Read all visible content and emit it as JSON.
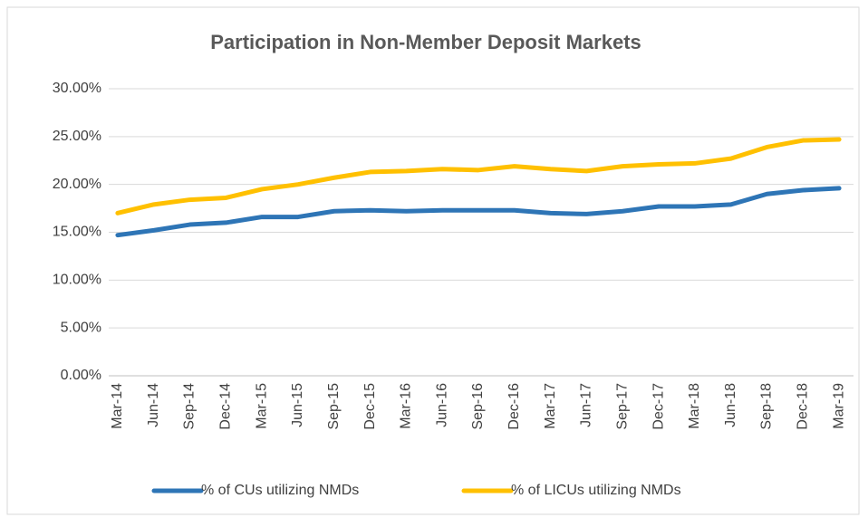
{
  "chart_data": {
    "type": "line",
    "title": "Participation in Non-Member Deposit Markets",
    "categories": [
      "Mar-14",
      "Jun-14",
      "Sep-14",
      "Dec-14",
      "Mar-15",
      "Jun-15",
      "Sep-15",
      "Dec-15",
      "Mar-16",
      "Jun-16",
      "Sep-16",
      "Dec-16",
      "Mar-17",
      "Jun-17",
      "Sep-17",
      "Dec-17",
      "Mar-18",
      "Jun-18",
      "Sep-18",
      "Dec-18",
      "Mar-19"
    ],
    "series": [
      {
        "name": "% of CUs utilizing NMDs",
        "color": "#2e75b6",
        "values": [
          14.7,
          15.2,
          15.8,
          16.0,
          16.6,
          16.6,
          17.2,
          17.3,
          17.2,
          17.3,
          17.3,
          17.3,
          17.0,
          16.9,
          17.2,
          17.7,
          17.7,
          17.9,
          19.0,
          19.4,
          19.6
        ]
      },
      {
        "name": "% of LICUs utilizing NMDs",
        "color": "#ffc000",
        "values": [
          17.0,
          17.9,
          18.4,
          18.6,
          19.5,
          20.0,
          20.7,
          21.3,
          21.4,
          21.6,
          21.5,
          21.9,
          21.6,
          21.4,
          21.9,
          22.1,
          22.2,
          22.7,
          23.9,
          24.6,
          24.7
        ]
      }
    ],
    "ylim": [
      0,
      30
    ],
    "yticks": [
      {
        "value": 0,
        "label": "0.00%"
      },
      {
        "value": 5,
        "label": "5.00%"
      },
      {
        "value": 10,
        "label": "10.00%"
      },
      {
        "value": 15,
        "label": "15.00%"
      },
      {
        "value": 20,
        "label": "20.00%"
      },
      {
        "value": 25,
        "label": "25.00%"
      },
      {
        "value": 30,
        "label": "30.00%"
      }
    ],
    "grid": true,
    "legend": "bottom"
  }
}
